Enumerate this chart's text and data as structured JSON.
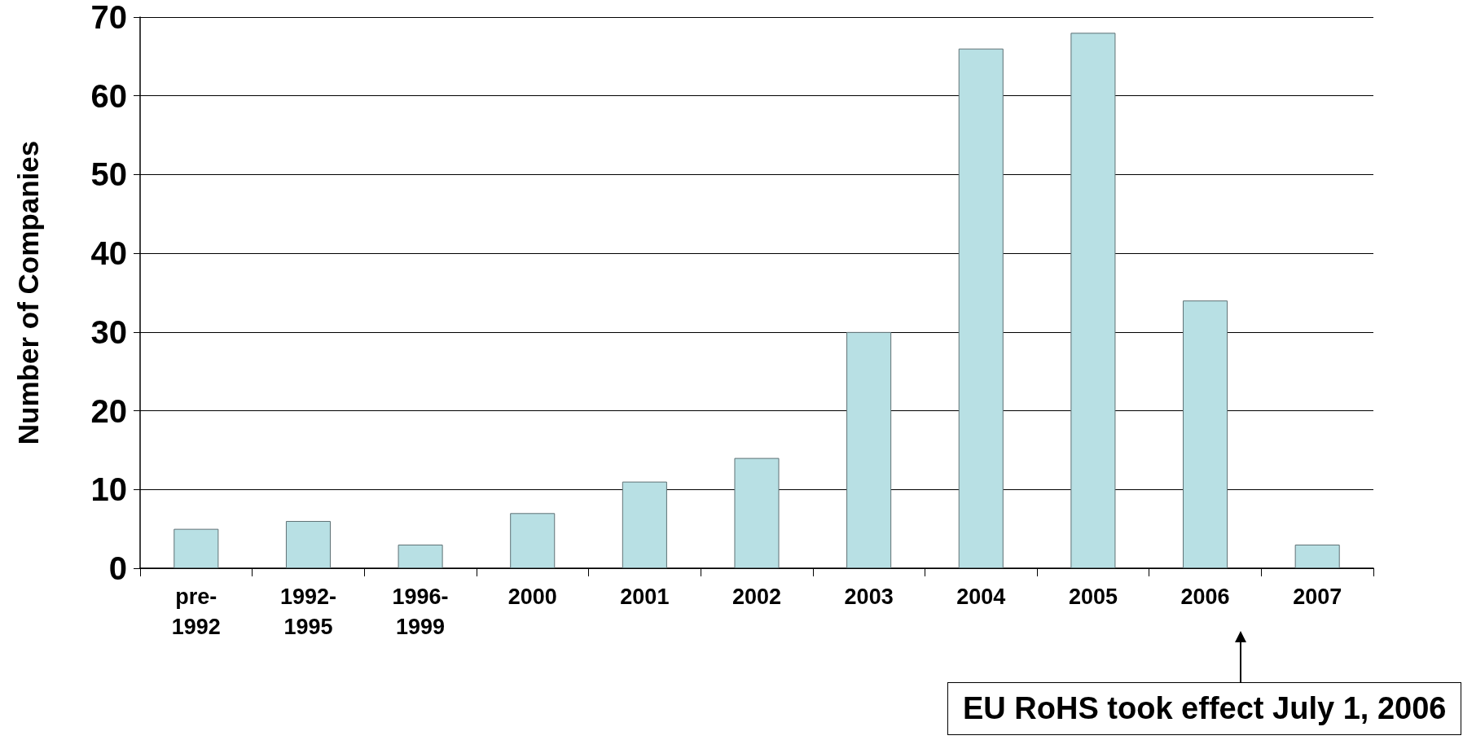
{
  "chart_data": {
    "type": "bar",
    "ylabel": "Number of Companies",
    "categories": [
      "pre-1992",
      "1992-1995",
      "1996-1999",
      "2000",
      "2001",
      "2002",
      "2003",
      "2004",
      "2005",
      "2006",
      "2007"
    ],
    "values": [
      5,
      6,
      3,
      7,
      11,
      14,
      30,
      66,
      68,
      34,
      3
    ],
    "color": "#b8e0e4",
    "ylim": [
      0,
      70
    ],
    "yticks": [
      0,
      10,
      20,
      30,
      40,
      50,
      60,
      70
    ],
    "grid": "y",
    "annotations": [
      "EU RoHS took effect July 1, 2006"
    ]
  }
}
